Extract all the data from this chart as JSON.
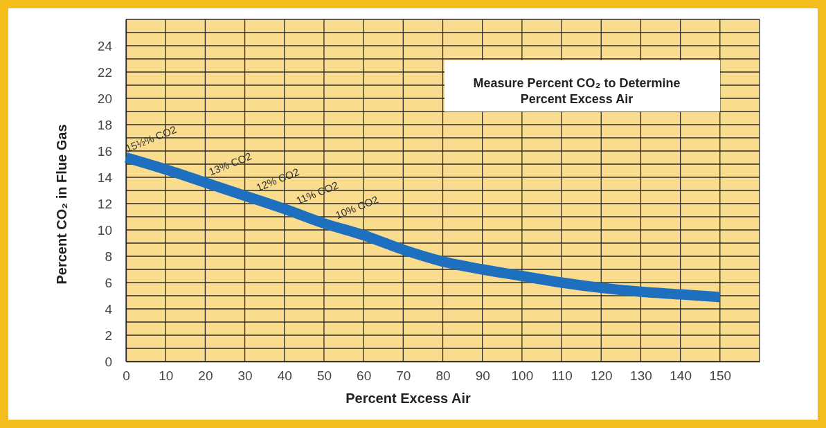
{
  "chart_data": {
    "type": "line",
    "title": "Measure Percent CO₂ to Determine Percent Excess Air",
    "xlabel": "Percent Excess Air",
    "ylabel": "Percent CO₂ in Flue Gas",
    "x": [
      0,
      10,
      20,
      30,
      40,
      50,
      60,
      70,
      80,
      90,
      100,
      110,
      120,
      130,
      140,
      150
    ],
    "series": [
      {
        "color": "#1f6fbf",
        "values": [
          15.5,
          14.6,
          13.6,
          12.6,
          11.6,
          10.5,
          9.6,
          8.5,
          7.6,
          7.0,
          6.5,
          6.0,
          5.6,
          5.3,
          5.1,
          4.9
        ]
      }
    ],
    "xlim": [
      0,
      160
    ],
    "xticks": [
      0,
      10,
      20,
      30,
      40,
      50,
      60,
      70,
      80,
      90,
      100,
      110,
      120,
      130,
      140,
      150
    ],
    "ylim": [
      0,
      26
    ],
    "yticks": [
      0,
      2,
      4,
      6,
      8,
      10,
      12,
      14,
      16,
      18,
      20,
      22,
      24
    ],
    "grid": true,
    "marker": "none",
    "line_style": "solid",
    "annotations": [
      {
        "text": "15½% CO2",
        "x": 0,
        "y": 15.5
      },
      {
        "text": "13% CO2",
        "x": 20,
        "y": 13.6
      },
      {
        "text": "12% CO2",
        "x": 32,
        "y": 12.4
      },
      {
        "text": "11% CO2",
        "x": 42,
        "y": 11.4
      },
      {
        "text": "10% CO2",
        "x": 52,
        "y": 10.3
      }
    ]
  }
}
